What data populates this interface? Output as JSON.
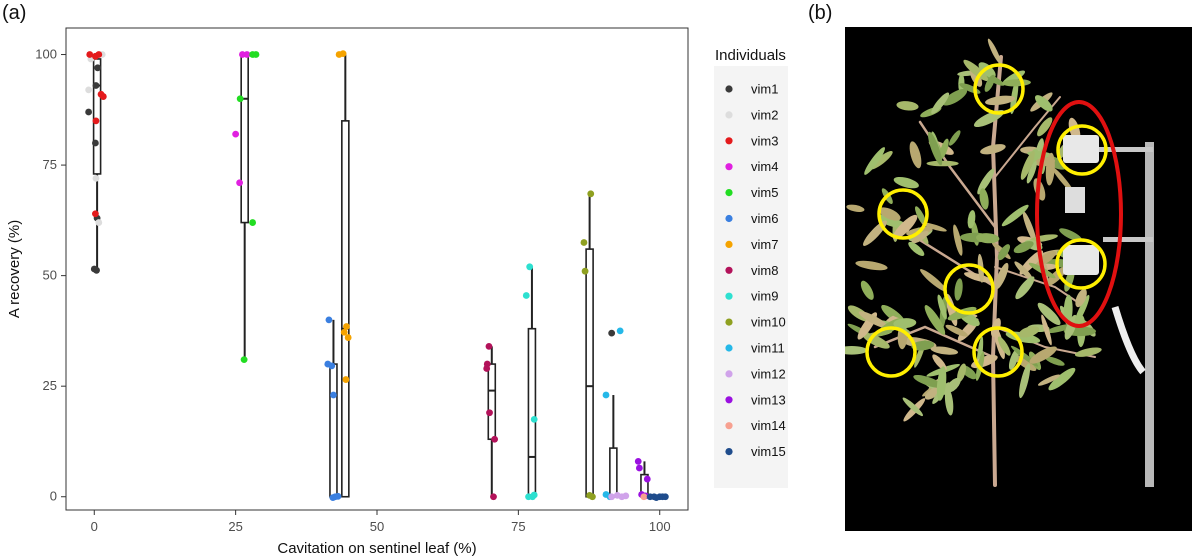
{
  "panels": {
    "a": "(a)",
    "b": "(b)"
  },
  "chart_data": {
    "type": "scatter",
    "xlabel": "Cavitation on sentinel leaf (%)",
    "ylabel": "A recovery (%)",
    "xlim": [
      -5,
      105
    ],
    "ylim": [
      -3,
      106
    ],
    "xticks": [
      0,
      25,
      50,
      75,
      100
    ],
    "yticks": [
      0,
      25,
      50,
      75,
      100
    ],
    "grid": false,
    "legend_title": "Individuals",
    "legend_position": "right",
    "series": [
      {
        "name": "vim1",
        "color": "#3a3a3a",
        "points": [
          [
            -1,
            87
          ],
          [
            0,
            51.5
          ],
          [
            0.4,
            51.2
          ],
          [
            0.5,
            63
          ],
          [
            0.3,
            93
          ],
          [
            0.6,
            97
          ],
          [
            0.2,
            80
          ],
          [
            91.5,
            37
          ]
        ]
      },
      {
        "name": "vim2",
        "color": "#dddddd",
        "points": [
          [
            -1,
            92
          ],
          [
            0.3,
            72
          ],
          [
            0.8,
            62
          ],
          [
            1.4,
            100
          ],
          [
            -0.6,
            99
          ]
        ]
      },
      {
        "name": "vim3",
        "color": "#e41a1c",
        "points": [
          [
            -0.8,
            100
          ],
          [
            0.2,
            99.6
          ],
          [
            0.8,
            100
          ],
          [
            1.2,
            91
          ],
          [
            1.6,
            90.5
          ],
          [
            0.3,
            85
          ],
          [
            0.2,
            64
          ]
        ]
      },
      {
        "name": "vim4",
        "color": "#e020e0",
        "points": [
          [
            25,
            82
          ],
          [
            25.7,
            71
          ],
          [
            26.2,
            100
          ],
          [
            27,
            100
          ]
        ]
      },
      {
        "name": "vim5",
        "color": "#22dd22",
        "points": [
          [
            25.8,
            90
          ],
          [
            26.5,
            31
          ],
          [
            28,
            100
          ],
          [
            28.6,
            100
          ],
          [
            28,
            62
          ]
        ]
      },
      {
        "name": "vim6",
        "color": "#3a7fe0",
        "points": [
          [
            41.5,
            40
          ],
          [
            41.3,
            30
          ],
          [
            42,
            29.6
          ],
          [
            42.3,
            23
          ],
          [
            42.2,
            -0.2
          ],
          [
            42.6,
            0
          ],
          [
            43.1,
            0.1
          ]
        ]
      },
      {
        "name": "vim7",
        "color": "#f5a300",
        "points": [
          [
            43.3,
            100
          ],
          [
            44,
            100.2
          ],
          [
            44.6,
            38.5
          ],
          [
            44.9,
            36
          ],
          [
            44.2,
            37.2
          ],
          [
            44.5,
            26.5
          ]
        ]
      },
      {
        "name": "vim8",
        "color": "#b3125a",
        "points": [
          [
            69.5,
            30
          ],
          [
            69.8,
            34
          ],
          [
            69.4,
            29
          ],
          [
            69.9,
            19
          ],
          [
            70.8,
            13
          ],
          [
            70.6,
            0
          ]
        ]
      },
      {
        "name": "vim9",
        "color": "#2de0d0",
        "points": [
          [
            76.4,
            45.5
          ],
          [
            77,
            52
          ],
          [
            77.8,
            17.5
          ],
          [
            76.8,
            0
          ],
          [
            77.5,
            0
          ],
          [
            77.8,
            0.4
          ]
        ]
      },
      {
        "name": "vim10",
        "color": "#8fa020",
        "points": [
          [
            86.6,
            57.5
          ],
          [
            86.8,
            51
          ],
          [
            87.8,
            68.5
          ],
          [
            87.6,
            0.3
          ],
          [
            88.1,
            0
          ]
        ]
      },
      {
        "name": "vim11",
        "color": "#25b8e8",
        "points": [
          [
            90.5,
            23
          ],
          [
            93,
            37.5
          ],
          [
            90.5,
            0.5
          ],
          [
            91.2,
            0
          ]
        ]
      },
      {
        "name": "vim12",
        "color": "#d0a3ea",
        "points": [
          [
            91.5,
            0
          ],
          [
            92.5,
            0.3
          ],
          [
            93.3,
            0
          ],
          [
            94,
            0.2
          ]
        ]
      },
      {
        "name": "vim13",
        "color": "#9a10e0",
        "points": [
          [
            96.2,
            8
          ],
          [
            96.4,
            6.5
          ],
          [
            97.8,
            4
          ],
          [
            96.8,
            0.5
          ],
          [
            97.5,
            0.2
          ]
        ]
      },
      {
        "name": "vim14",
        "color": "#f7a090",
        "points": [
          [
            97.2,
            0
          ]
        ]
      },
      {
        "name": "vim15",
        "color": "#1f4c8c",
        "points": [
          [
            98.3,
            0
          ],
          [
            99,
            0
          ],
          [
            99.4,
            -0.2
          ],
          [
            100,
            0
          ],
          [
            100.5,
            0
          ],
          [
            101,
            0
          ]
        ]
      }
    ],
    "boxplots": [
      {
        "x": 0.5,
        "min": 51,
        "q1": 73,
        "median": 93,
        "q3": 99,
        "max": 100
      },
      {
        "x": 26.6,
        "min": 31,
        "q1": 62,
        "median": 90,
        "q3": 100,
        "max": 100
      },
      {
        "x": 42.3,
        "min": 0,
        "q1": 0,
        "median": 0,
        "q3": 30,
        "max": 40
      },
      {
        "x": 44.4,
        "min": 0,
        "q1": 0,
        "median": 38,
        "q3": 85,
        "max": 100
      },
      {
        "x": 70.3,
        "min": 0,
        "q1": 13,
        "median": 24,
        "q3": 30,
        "max": 34
      },
      {
        "x": 77.4,
        "min": 0,
        "q1": 0,
        "median": 9,
        "q3": 38,
        "max": 52
      },
      {
        "x": 87.6,
        "min": 0,
        "q1": 0,
        "median": 25,
        "q3": 56,
        "max": 68
      },
      {
        "x": 91.8,
        "min": 0,
        "q1": 0,
        "median": 0,
        "q3": 11,
        "max": 23
      },
      {
        "x": 97.3,
        "min": 0,
        "q1": 0,
        "median": 0.5,
        "q3": 5,
        "max": 8
      }
    ]
  },
  "photo": {
    "background": "#000000",
    "highlight_colors": {
      "leaves": "#ffef00",
      "sensors": "#e01010"
    }
  }
}
